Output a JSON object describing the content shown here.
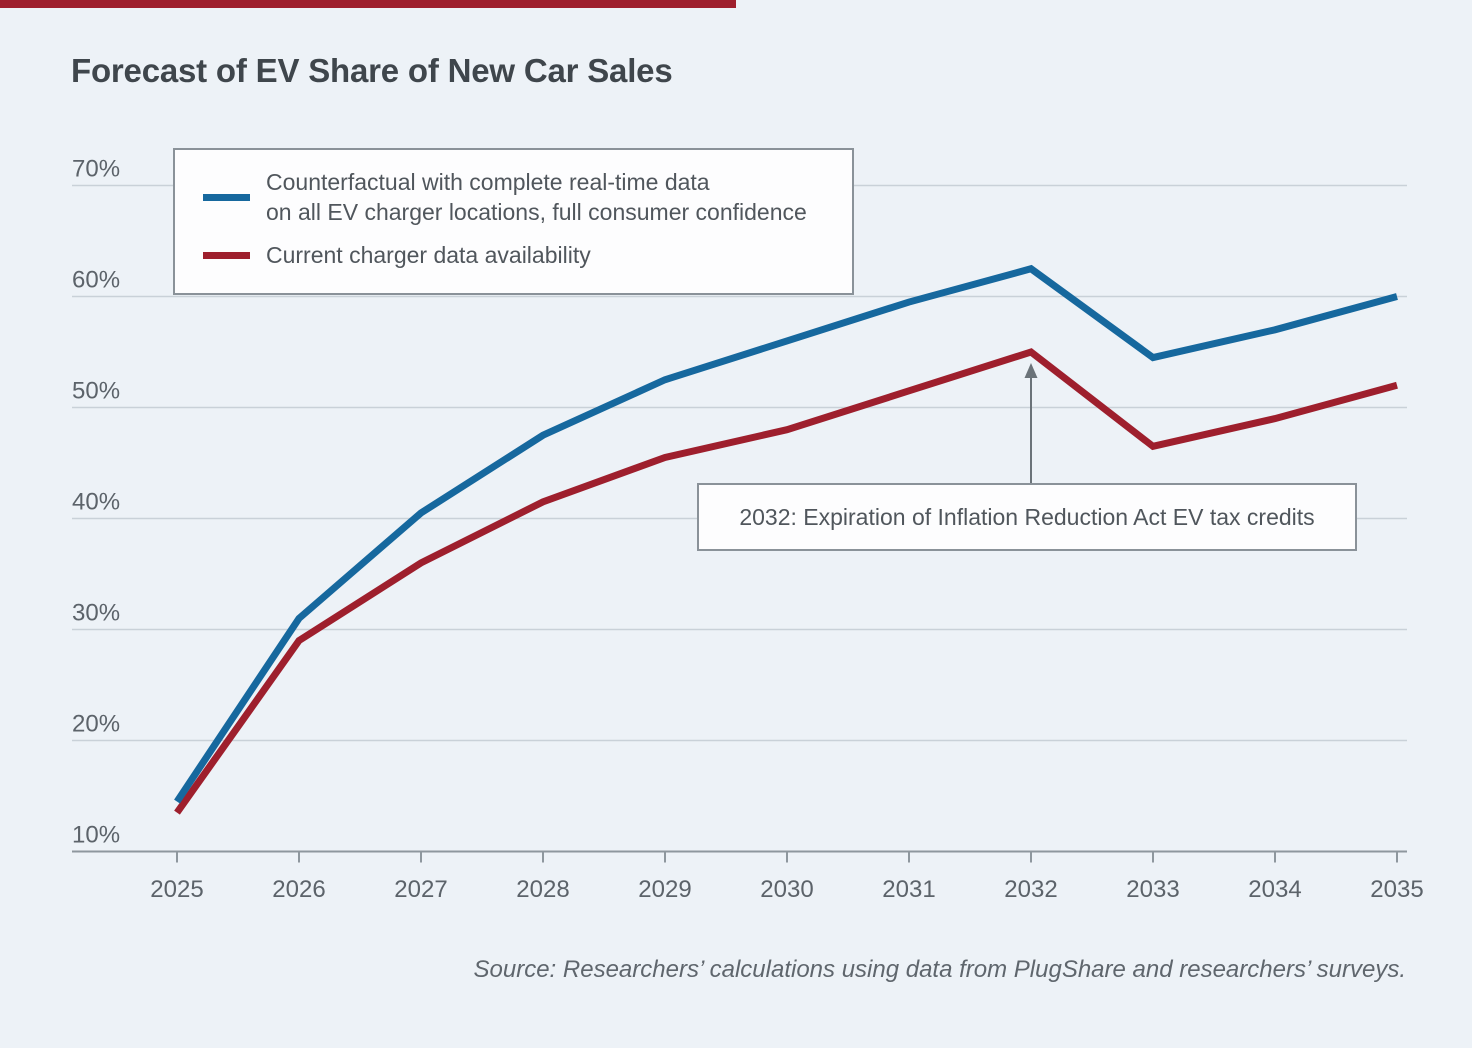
{
  "page": {
    "title": "Forecast of EV Share of New Car Sales",
    "source": "Source: Researchers’ calculations using data from PlugShare and researchers’ surveys.",
    "background_color": "#edf2f7",
    "accent_color": "#9e1f2d"
  },
  "legend": {
    "items": [
      {
        "label_line1": "Counterfactual with complete real-time data",
        "label_line2": "on all EV charger locations, full consumer confidence",
        "color": "#16689e"
      },
      {
        "label_line1": "Current charger data availability",
        "color": "#9e1f2d"
      }
    ]
  },
  "annotation": {
    "text": "2032: Expiration of Inflation Reduction Act EV tax credits",
    "target_year": 2032,
    "target_series": "Current charger data availability",
    "arrow_color": "#6b7379"
  },
  "chart_data": {
    "type": "line",
    "title": "Forecast of EV Share of New Car Sales",
    "x": [
      2025,
      2026,
      2027,
      2028,
      2029,
      2030,
      2031,
      2032,
      2033,
      2034,
      2035
    ],
    "series": [
      {
        "name": "Counterfactual with complete real-time data on all EV charger locations, full consumer confidence",
        "color": "#16689e",
        "values": [
          14.5,
          31,
          40.5,
          47.5,
          52.5,
          56,
          59.5,
          62.5,
          54.5,
          57,
          60
        ]
      },
      {
        "name": "Current charger data availability",
        "color": "#9e1f2d",
        "values": [
          13.5,
          29,
          36,
          41.5,
          45.5,
          48,
          51.5,
          55,
          46.5,
          49,
          52
        ]
      }
    ],
    "ylim": [
      10,
      70
    ],
    "yticks": [
      10,
      20,
      30,
      40,
      50,
      60,
      70
    ],
    "ytick_suffix": "%",
    "xlabel": "",
    "ylabel": "EV share of new car sales",
    "grid": true,
    "legend_position": "top-left",
    "gridline_color": "#c9d1d8",
    "axis_color": "#8e979e",
    "tick_label_color": "#5c636a"
  }
}
